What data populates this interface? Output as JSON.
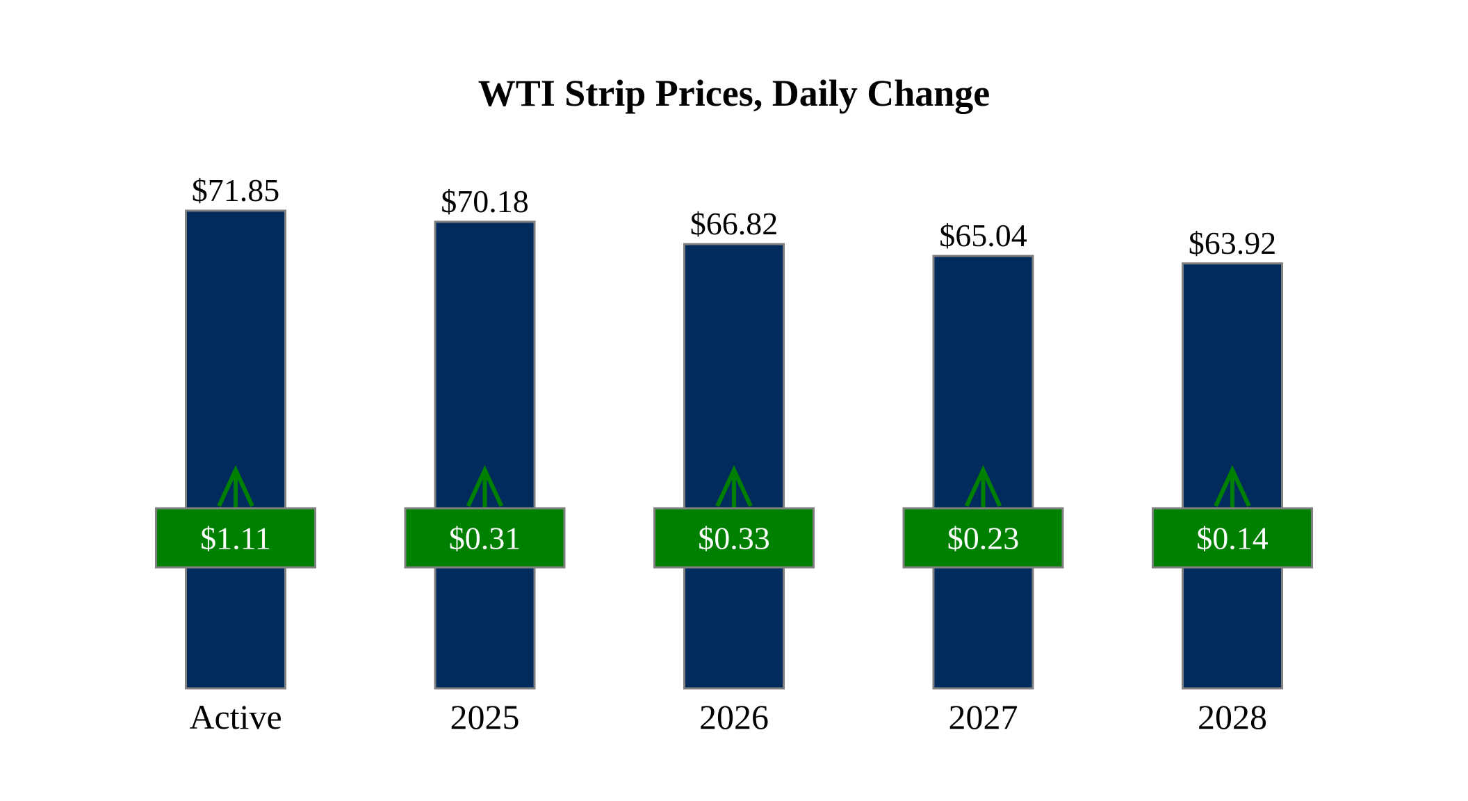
{
  "chart_data": {
    "type": "bar",
    "title": "WTI Strip Prices, Daily Change",
    "categories": [
      "Active",
      "2025",
      "2026",
      "2027",
      "2028"
    ],
    "series": [
      {
        "name": "Price",
        "color": "#002b5c",
        "values": [
          71.85,
          70.18,
          66.82,
          65.04,
          63.92
        ],
        "value_labels": [
          "$71.85",
          "$70.18",
          "$66.82",
          "$65.04",
          "$63.92"
        ]
      },
      {
        "name": "Daily Change",
        "color": "#008000",
        "values": [
          1.11,
          0.31,
          0.33,
          0.23,
          0.14
        ],
        "value_labels": [
          "$1.11",
          "$0.31",
          "$0.33",
          "$0.23",
          "$0.14"
        ]
      }
    ]
  }
}
